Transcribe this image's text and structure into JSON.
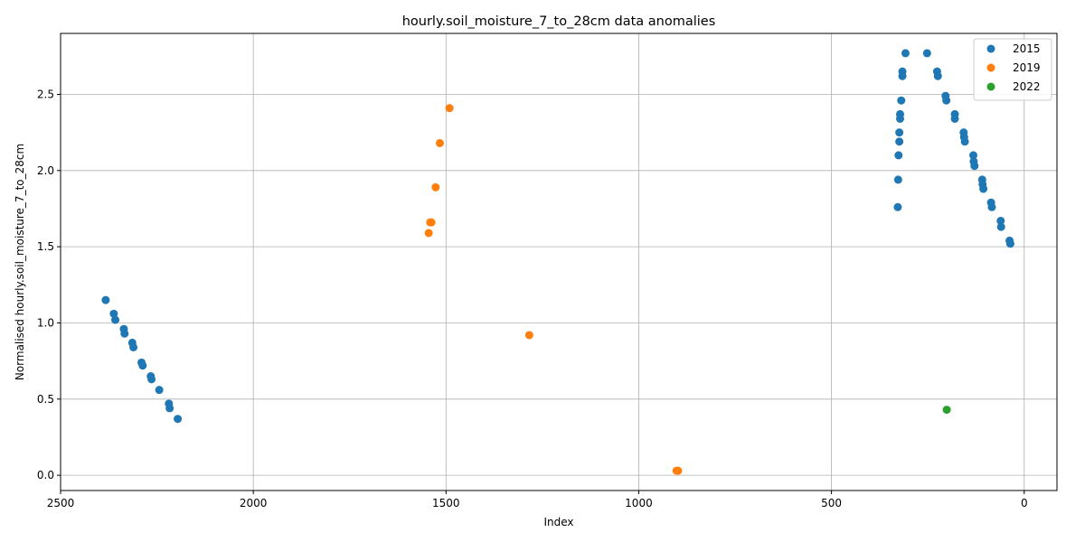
{
  "chart_data": {
    "type": "scatter",
    "title": "hourly.soil_moisture_7_to_28cm data anomalies",
    "xlabel": "Index",
    "ylabel": "Normalised hourly.soil_moisture_7_to_28cm",
    "xlim": [
      2500,
      -85
    ],
    "ylim": [
      -0.1,
      2.9
    ],
    "x_inverted": true,
    "grid": true,
    "legend_placement": "top-right",
    "xticks": [
      2500,
      2000,
      1500,
      1000,
      500,
      0
    ],
    "yticks": [
      0.0,
      0.5,
      1.0,
      1.5,
      2.0,
      2.5
    ],
    "ytick_labels": [
      "0.0",
      "0.5",
      "1.0",
      "1.5",
      "2.0",
      "2.5"
    ],
    "series": [
      {
        "name": "2015",
        "color": "#1f77b4",
        "points": [
          [
            2383,
            1.15
          ],
          [
            2362,
            1.06
          ],
          [
            2358,
            1.02
          ],
          [
            2336,
            0.96
          ],
          [
            2334,
            0.93
          ],
          [
            2314,
            0.87
          ],
          [
            2311,
            0.84
          ],
          [
            2290,
            0.74
          ],
          [
            2287,
            0.72
          ],
          [
            2266,
            0.65
          ],
          [
            2264,
            0.63
          ],
          [
            2244,
            0.56
          ],
          [
            2219,
            0.47
          ],
          [
            2217,
            0.44
          ],
          [
            2196,
            0.37
          ],
          [
            328,
            1.76
          ],
          [
            327,
            1.94
          ],
          [
            326,
            2.1
          ],
          [
            324,
            2.19
          ],
          [
            324,
            2.25
          ],
          [
            322,
            2.34
          ],
          [
            322,
            2.37
          ],
          [
            319,
            2.46
          ],
          [
            316,
            2.62
          ],
          [
            316,
            2.65
          ],
          [
            308,
            2.77
          ],
          [
            252,
            2.77
          ],
          [
            226,
            2.65
          ],
          [
            224,
            2.62
          ],
          [
            204,
            2.49
          ],
          [
            202,
            2.46
          ],
          [
            180,
            2.37
          ],
          [
            180,
            2.34
          ],
          [
            157,
            2.25
          ],
          [
            156,
            2.22
          ],
          [
            154,
            2.19
          ],
          [
            132,
            2.1
          ],
          [
            131,
            2.06
          ],
          [
            129,
            2.03
          ],
          [
            109,
            1.94
          ],
          [
            108,
            1.91
          ],
          [
            106,
            1.88
          ],
          [
            86,
            1.79
          ],
          [
            84,
            1.76
          ],
          [
            61,
            1.67
          ],
          [
            60,
            1.63
          ],
          [
            38,
            1.54
          ],
          [
            36,
            1.52
          ]
        ]
      },
      {
        "name": "2019",
        "color": "#ff7f0e",
        "points": [
          [
            1491,
            2.41
          ],
          [
            1516,
            2.18
          ],
          [
            1527,
            1.89
          ],
          [
            1538,
            1.66
          ],
          [
            1541,
            1.66
          ],
          [
            1545,
            1.59
          ],
          [
            1284,
            0.92
          ],
          [
            902,
            0.03
          ],
          [
            898,
            0.03
          ]
        ]
      },
      {
        "name": "2022",
        "color": "#2ca02c",
        "points": [
          [
            201,
            0.43
          ]
        ]
      }
    ]
  }
}
